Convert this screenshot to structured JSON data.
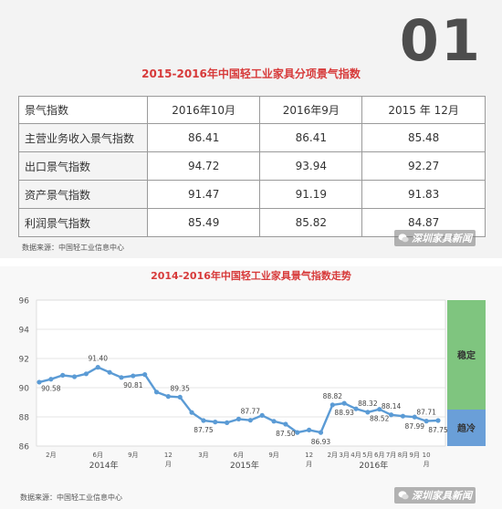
{
  "header": {
    "section_number": "01"
  },
  "table_section": {
    "title": "2015-2016年中国轻工业家具分项景气指数",
    "columns": [
      "景气指数",
      "2016年10月",
      "2016年9月",
      "2015 年 12月"
    ],
    "rows": [
      {
        "label": "主营业务收入景气指数",
        "values": [
          "86.41",
          "86.41",
          "85.48"
        ]
      },
      {
        "label": "出口景气指数",
        "values": [
          "94.72",
          "93.94",
          "92.27"
        ]
      },
      {
        "label": "资产景气指数",
        "values": [
          "91.47",
          "91.19",
          "91.83"
        ]
      },
      {
        "label": "利润景气指数",
        "values": [
          "85.49",
          "85.82",
          "84.87"
        ]
      }
    ],
    "source": "数据来源：中国轻工业信息中心"
  },
  "watermark": {
    "text": "深圳家具新闻"
  },
  "chart_section": {
    "source": "数据来源：中国轻工业信息中心"
  },
  "chart_data": {
    "type": "line",
    "title": "2014-2016年中国轻工业家具景气指数走势",
    "ylim": [
      86,
      96
    ],
    "yticks": [
      "86",
      "88",
      "90",
      "92",
      "94",
      "96"
    ],
    "grid": true,
    "series_color": "#5b9bd5",
    "x_tick_labels": [
      {
        "i": 1,
        "text": "2月"
      },
      {
        "i": 5,
        "text": "6月"
      },
      {
        "i": 8,
        "text": "9月"
      },
      {
        "i": 11,
        "text": "12月"
      },
      {
        "i": 14,
        "text": "3月"
      },
      {
        "i": 17,
        "text": "6月"
      },
      {
        "i": 20,
        "text": "9月"
      },
      {
        "i": 23,
        "text": "12月"
      },
      {
        "i": 25,
        "text": "2月"
      },
      {
        "i": 26,
        "text": "3月"
      },
      {
        "i": 27,
        "text": "4月"
      },
      {
        "i": 28,
        "text": "5月"
      },
      {
        "i": 29,
        "text": "6月"
      },
      {
        "i": 30,
        "text": "7月"
      },
      {
        "i": 31,
        "text": "8月"
      },
      {
        "i": 32,
        "text": "9月"
      },
      {
        "i": 33,
        "text": "10月"
      }
    ],
    "year_labels": [
      {
        "i": 5.5,
        "text": "2014年"
      },
      {
        "i": 17.5,
        "text": "2015年"
      },
      {
        "i": 28.5,
        "text": "2016年"
      }
    ],
    "values": [
      90.38,
      90.58,
      90.85,
      90.75,
      90.95,
      91.4,
      91.05,
      90.7,
      90.81,
      90.9,
      89.7,
      89.4,
      89.35,
      88.3,
      87.75,
      87.65,
      87.6,
      87.85,
      87.77,
      88.1,
      87.7,
      87.5,
      86.93,
      87.1,
      86.93,
      88.82,
      88.93,
      88.55,
      88.32,
      88.52,
      88.14,
      88.05,
      87.99,
      87.71,
      87.75
    ],
    "point_labels": [
      {
        "i": 1,
        "text": "90.58",
        "pos": "below"
      },
      {
        "i": 5,
        "text": "91.40",
        "pos": "above"
      },
      {
        "i": 8,
        "text": "90.81",
        "pos": "below"
      },
      {
        "i": 12,
        "text": "89.35",
        "pos": "above"
      },
      {
        "i": 14,
        "text": "87.75",
        "pos": "below"
      },
      {
        "i": 18,
        "text": "87.77",
        "pos": "above"
      },
      {
        "i": 21,
        "text": "87.50",
        "pos": "below"
      },
      {
        "i": 24,
        "text": "86.93",
        "pos": "below"
      },
      {
        "i": 25,
        "text": "88.82",
        "pos": "above"
      },
      {
        "i": 26,
        "text": "88.93",
        "pos": "below"
      },
      {
        "i": 28,
        "text": "88.32",
        "pos": "above"
      },
      {
        "i": 29,
        "text": "88.52",
        "pos": "below"
      },
      {
        "i": 30,
        "text": "88.14",
        "pos": "above"
      },
      {
        "i": 32,
        "text": "87.99",
        "pos": "below"
      },
      {
        "i": 33,
        "text": "87.71",
        "pos": "above"
      },
      {
        "i": 34,
        "text": "87.75",
        "pos": "below"
      }
    ],
    "zones": [
      {
        "label": "稳定",
        "from": 88.5,
        "to": 96,
        "color": "#7fc57f"
      },
      {
        "label": "趋冷",
        "from": 86,
        "to": 88.5,
        "color": "#6a9fd8"
      }
    ]
  }
}
